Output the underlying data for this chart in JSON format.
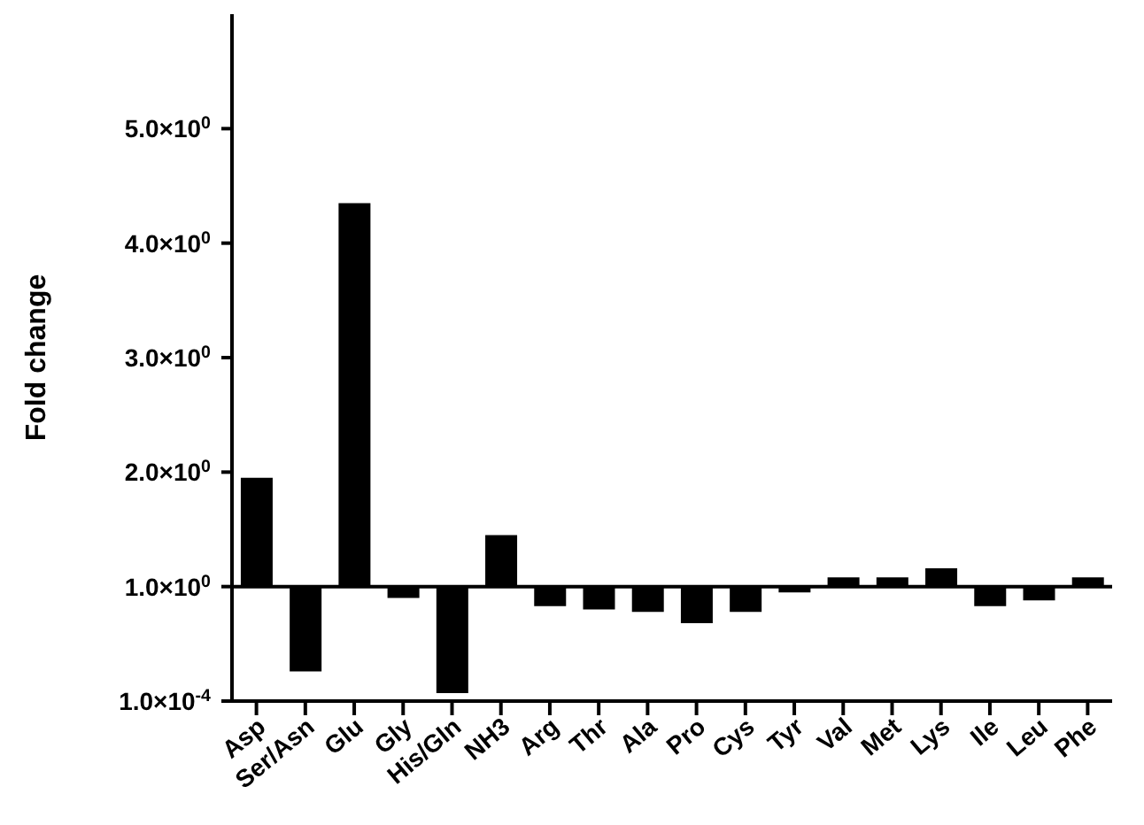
{
  "chart_data": {
    "type": "bar",
    "ylabel": "Fold change",
    "categories": [
      "Asp",
      "Ser/Asn",
      "Glu",
      "Gly",
      "His/Gln",
      "NH3",
      "Arg",
      "Thr",
      "Ala",
      "Pro",
      "Cys",
      "Tyr",
      "Val",
      "Met",
      "Lys",
      "Ile",
      "Leu",
      "Phe"
    ],
    "base": [
      1,
      1,
      1,
      1,
      1,
      1,
      1,
      1,
      1,
      1,
      1,
      1,
      1,
      1,
      1,
      1,
      1,
      1
    ],
    "values": [
      0.95,
      -0.74,
      3.35,
      -0.1,
      -0.93,
      0.45,
      -0.17,
      -0.2,
      -0.22,
      -0.32,
      -0.22,
      -0.05,
      0.08,
      0.08,
      0.16,
      -0.17,
      -0.12,
      0.08
    ],
    "color": "#000000",
    "ylim": [
      0.0001,
      6
    ],
    "yticks": [
      {
        "value": 0.0001,
        "label": "1.0×10$^{-4}$"
      },
      {
        "value": 1,
        "label": "1.0×10$^{0}$"
      },
      {
        "value": 2,
        "label": "2.0×10$^{0}$"
      },
      {
        "value": 3,
        "label": "3.0×10$^{0}$"
      },
      {
        "value": 4,
        "label": "4.0×10$^{0}$"
      },
      {
        "value": 5,
        "label": "5.0×10$^{0}$"
      }
    ],
    "ref_lines": [
      {
        "axis": "y",
        "value": 1,
        "color": "#000000"
      }
    ],
    "grid": false,
    "legend": false
  }
}
